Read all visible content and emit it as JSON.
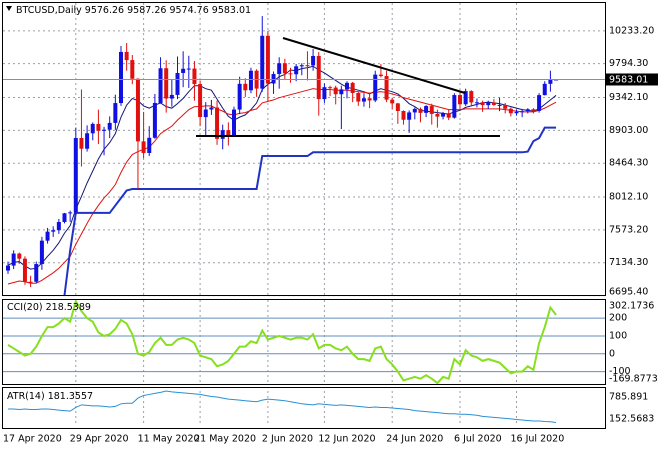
{
  "chart_data": [
    {
      "type": "candlestick",
      "title": "BTCUSD,Daily",
      "categories": [
        "17 Apr 2020",
        null,
        null,
        null,
        null,
        null,
        null,
        null,
        null,
        null,
        null,
        null,
        "29 Apr 2020",
        null,
        null,
        null,
        null,
        null,
        null,
        null,
        null,
        null,
        null,
        null,
        "11 May 2020",
        null,
        null,
        null,
        null,
        null,
        null,
        null,
        null,
        null,
        "21 May 2020",
        null,
        null,
        null,
        null,
        null,
        null,
        null,
        null,
        null,
        null,
        null,
        "2 Jun 2020",
        null,
        null,
        null,
        null,
        null,
        null,
        null,
        null,
        null,
        "12 Jun 2020",
        null,
        null,
        null,
        null,
        null,
        null,
        null,
        null,
        null,
        null,
        null,
        "24 Jun 2020",
        null,
        null,
        null,
        null,
        null,
        null,
        null,
        null,
        null,
        null,
        null,
        "6 Jul 2020",
        null,
        null,
        null,
        null,
        null,
        null,
        null,
        null,
        null,
        "16 Jul 2020",
        null,
        null,
        null,
        null,
        null,
        null,
        null
      ],
      "ohlc": [
        [
          7030,
          7150,
          6985,
          7096
        ],
        [
          7096,
          7300,
          7050,
          7257
        ],
        [
          7257,
          7270,
          7120,
          7189
        ],
        [
          7189,
          7220,
          6840,
          6881
        ],
        [
          6881,
          6960,
          6810,
          6880
        ],
        [
          6880,
          7150,
          6860,
          7117
        ],
        [
          7117,
          7480,
          7040,
          7429
        ],
        [
          7429,
          7600,
          7390,
          7550
        ],
        [
          7550,
          7620,
          7480,
          7569
        ],
        [
          7569,
          7720,
          7520,
          7679
        ],
        [
          7679,
          7800,
          7660,
          7795
        ],
        [
          7795,
          7830,
          7680,
          7807
        ],
        [
          7807,
          8940,
          7780,
          8801
        ],
        [
          8801,
          9450,
          8420,
          8658
        ],
        [
          8658,
          8970,
          8620,
          8864
        ],
        [
          8864,
          9010,
          8770,
          8989
        ],
        [
          8989,
          9180,
          8720,
          8897
        ],
        [
          8897,
          8950,
          8570,
          8912
        ],
        [
          8912,
          9090,
          8800,
          9003
        ],
        [
          9003,
          9380,
          8910,
          9268
        ],
        [
          9268,
          10030,
          9230,
          9951
        ],
        [
          9951,
          10070,
          9700,
          9842
        ],
        [
          9842,
          9910,
          9520,
          9593
        ],
        [
          9593,
          9600,
          8120,
          8756
        ],
        [
          8756,
          9150,
          8530,
          8601
        ],
        [
          8601,
          8960,
          8560,
          8804
        ],
        [
          8804,
          9390,
          8790,
          9269
        ],
        [
          9269,
          9880,
          9260,
          9733
        ],
        [
          9733,
          9840,
          9140,
          9328
        ],
        [
          9328,
          9580,
          9220,
          9377
        ],
        [
          9377,
          9890,
          9320,
          9670
        ],
        [
          9670,
          9960,
          9480,
          9726
        ],
        [
          9726,
          9900,
          9470,
          9729
        ],
        [
          9729,
          9830,
          9300,
          9522
        ],
        [
          9522,
          9570,
          8960,
          9081
        ],
        [
          9081,
          9280,
          8820,
          9182
        ],
        [
          9182,
          9310,
          9110,
          9209
        ],
        [
          9209,
          9300,
          8710,
          8790
        ],
        [
          8790,
          8980,
          8650,
          8906
        ],
        [
          8906,
          9010,
          8700,
          8835
        ],
        [
          8835,
          9220,
          8820,
          9181
        ],
        [
          9181,
          9620,
          9120,
          9525
        ],
        [
          9525,
          9600,
          9350,
          9439
        ],
        [
          9439,
          9740,
          9400,
          9700
        ],
        [
          9700,
          9720,
          9350,
          9461
        ],
        [
          9461,
          10430,
          9420,
          10167
        ],
        [
          10167,
          10230,
          9290,
          9529
        ],
        [
          9529,
          9690,
          9390,
          9656
        ],
        [
          9656,
          9880,
          9460,
          9800
        ],
        [
          9800,
          9860,
          9590,
          9665
        ],
        [
          9665,
          9740,
          9540,
          9653
        ],
        [
          9653,
          9790,
          9560,
          9759
        ],
        [
          9759,
          9800,
          9640,
          9774
        ],
        [
          9774,
          9960,
          9570,
          9771
        ],
        [
          9771,
          9990,
          9700,
          9897
        ],
        [
          9897,
          9950,
          9100,
          9321
        ],
        [
          9321,
          9530,
          9270,
          9480
        ],
        [
          9480,
          9500,
          9360,
          9475
        ],
        [
          9475,
          9500,
          9250,
          9386
        ],
        [
          9386,
          9500,
          8920,
          9450
        ],
        [
          9450,
          9560,
          9330,
          9538
        ],
        [
          9538,
          9550,
          9280,
          9402
        ],
        [
          9402,
          9420,
          9230,
          9288
        ],
        [
          9288,
          9400,
          9220,
          9332
        ],
        [
          9332,
          9400,
          9200,
          9303
        ],
        [
          9303,
          9700,
          9280,
          9648
        ],
        [
          9648,
          9790,
          9610,
          9629
        ],
        [
          9629,
          9700,
          9280,
          9313
        ],
        [
          9313,
          9340,
          9190,
          9264
        ],
        [
          9264,
          9270,
          8990,
          9162
        ],
        [
          9162,
          9170,
          8980,
          9045
        ],
        [
          9045,
          9170,
          8870,
          9143
        ],
        [
          9143,
          9210,
          9050,
          9190
        ],
        [
          9190,
          9210,
          9010,
          9137
        ],
        [
          9137,
          9240,
          9080,
          9228
        ],
        [
          9228,
          9260,
          8980,
          9123
        ],
        [
          9123,
          9180,
          8940,
          9087
        ],
        [
          9087,
          9150,
          9050,
          9132
        ],
        [
          9132,
          9180,
          9040,
          9073
        ],
        [
          9073,
          9400,
          9060,
          9375
        ],
        [
          9375,
          9420,
          9170,
          9252
        ],
        [
          9252,
          9460,
          9230,
          9428
        ],
        [
          9428,
          9440,
          9230,
          9277
        ],
        [
          9277,
          9330,
          9210,
          9278
        ],
        [
          9278,
          9300,
          9150,
          9240
        ],
        [
          9240,
          9300,
          9190,
          9276
        ],
        [
          9276,
          9320,
          9230,
          9243
        ],
        [
          9243,
          9340,
          9160,
          9243
        ],
        [
          9243,
          9270,
          9130,
          9192
        ],
        [
          9192,
          9210,
          9090,
          9132
        ],
        [
          9132,
          9180,
          9100,
          9151
        ],
        [
          9151,
          9190,
          9080,
          9159
        ],
        [
          9159,
          9200,
          9130,
          9185
        ],
        [
          9185,
          9200,
          9130,
          9164
        ],
        [
          9164,
          9400,
          9140,
          9374
        ],
        [
          9374,
          9560,
          9370,
          9525
        ],
        [
          9525,
          9700,
          9420,
          9576
        ],
        [
          9576.26,
          9587.26,
          9574.76,
          9583.01
        ]
      ],
      "bull_color": "#1010e0",
      "bear_color": "#e01010",
      "series": [
        {
          "color": "#15157a",
          "values": [
            7100,
            7140,
            7150,
            7090,
            7050,
            7060,
            7130,
            7220,
            7300,
            7400,
            7530,
            7630,
            7850,
            8020,
            8200,
            8360,
            8520,
            8650,
            8740,
            8860,
            9080,
            9240,
            9330,
            9300,
            9230,
            9200,
            9240,
            9270,
            9220,
            9200,
            9260,
            9330,
            9420,
            9500,
            9500,
            9460,
            9440,
            9320,
            9200,
            9090,
            9040,
            9080,
            9110,
            9180,
            9270,
            9450,
            9520,
            9560,
            9620,
            9650,
            9710,
            9700,
            9730,
            9740,
            9760,
            9710,
            9670,
            9620,
            9570,
            9520,
            9480,
            9460,
            9440,
            9420,
            9390,
            9430,
            9460,
            9440,
            9420,
            9390,
            9330,
            9260,
            9220,
            9170,
            9160,
            9150,
            9140,
            9130,
            9120,
            9150,
            9170,
            9210,
            9230,
            9250,
            9270,
            9280,
            9270,
            9260,
            9240,
            9220,
            9200,
            9180,
            9170,
            9160,
            9190,
            9250,
            9310,
            9370
          ]
        },
        {
          "color": "#e01010",
          "values": [
            6850,
            6870,
            6890,
            6880,
            6860,
            6860,
            6900,
            6950,
            7000,
            7060,
            7140,
            7220,
            7380,
            7520,
            7660,
            7790,
            7900,
            8000,
            8080,
            8180,
            8340,
            8480,
            8580,
            8620,
            8650,
            8680,
            8760,
            8860,
            8910,
            8960,
            9040,
            9110,
            9180,
            9220,
            9220,
            9230,
            9230,
            9190,
            9160,
            9120,
            9110,
            9130,
            9140,
            9170,
            9190,
            9270,
            9290,
            9310,
            9340,
            9360,
            9380,
            9400,
            9420,
            9440,
            9460,
            9450,
            9450,
            9450,
            9440,
            9440,
            9440,
            9430,
            9420,
            9410,
            9400,
            9410,
            9420,
            9410,
            9390,
            9370,
            9340,
            9320,
            9300,
            9280,
            9260,
            9240,
            9220,
            9200,
            9180,
            9180,
            9180,
            9190,
            9190,
            9190,
            9190,
            9190,
            9190,
            9190,
            9180,
            9170,
            9160,
            9150,
            9150,
            9150,
            9170,
            9200,
            9240,
            9280
          ]
        },
        {
          "color": "#1f33c7",
          "values": [
            null,
            null,
            null,
            null,
            null,
            null,
            null,
            null,
            null,
            null,
            6700,
            7300,
            7800,
            7800,
            7800,
            7800,
            7800,
            7800,
            7800,
            7900,
            8000,
            8100,
            8120,
            8120,
            8120,
            8120,
            8120,
            8120,
            8120,
            8120,
            8120,
            8120,
            8120,
            8120,
            8120,
            8120,
            8120,
            8120,
            8120,
            8120,
            8120,
            8120,
            8120,
            8120,
            8120,
            8560,
            8560,
            8560,
            8560,
            8560,
            8560,
            8560,
            8560,
            8560,
            8610,
            8610,
            8610,
            8610,
            8610,
            8610,
            8610,
            8610,
            8610,
            8610,
            8610,
            8610,
            8610,
            8610,
            8610,
            8610,
            8610,
            8610,
            8610,
            8610,
            8610,
            8610,
            8610,
            8610,
            8610,
            8610,
            8610,
            8610,
            8610,
            8610,
            8610,
            8610,
            8610,
            8610,
            8610,
            8610,
            8610,
            8610,
            8620,
            8760,
            8800,
            8940,
            8940,
            8940
          ]
        }
      ],
      "ylim": [
        6690,
        10605
      ],
      "yticks": [
        {
          "value": 10233.2,
          "label": "10233.20"
        },
        {
          "value": 9794.3,
          "label": "9794.30"
        },
        {
          "value": 9342.1,
          "label": "9342.10"
        },
        {
          "value": 8903,
          "label": "8903.00"
        },
        {
          "value": 8464.3,
          "label": "8464.30"
        },
        {
          "value": 8012.1,
          "label": "8012.10"
        },
        {
          "value": 7573.2,
          "label": "7573.20"
        },
        {
          "value": 7134.3,
          "label": "7134.30"
        },
        {
          "value": 6695.4,
          "label": "6695.40"
        }
      ],
      "grid": true
    },
    {
      "type": "line",
      "title": "CCI(20)",
      "color": "#86e01f",
      "values": [
        50,
        30,
        10,
        -10,
        0,
        40,
        100,
        150,
        150,
        170,
        200,
        180,
        295,
        240,
        200,
        180,
        120,
        100,
        110,
        140,
        190,
        170,
        110,
        0,
        -10,
        10,
        60,
        90,
        50,
        50,
        80,
        90,
        80,
        60,
        -10,
        -20,
        -30,
        -70,
        -60,
        -40,
        0,
        40,
        40,
        70,
        60,
        130,
        80,
        90,
        100,
        90,
        80,
        90,
        90,
        80,
        110,
        30,
        50,
        50,
        30,
        20,
        40,
        0,
        -30,
        -30,
        -40,
        30,
        40,
        -30,
        -60,
        -100,
        -150,
        -140,
        -130,
        -140,
        -120,
        -140,
        -165,
        -130,
        -140,
        -30,
        -60,
        20,
        -10,
        -20,
        -40,
        -30,
        -40,
        -50,
        -80,
        -110,
        -100,
        -100,
        -70,
        -90,
        60,
        150,
        260,
        218.5389
      ],
      "ylim": [
        -169.8773,
        302.1736
      ],
      "yticks": [
        302.1736,
        200,
        100,
        0,
        -100,
        -169.8773
      ]
    },
    {
      "type": "line",
      "title": "ATR(14)",
      "color": "#2a8fd4",
      "values": [
        440,
        440,
        430,
        440,
        430,
        430,
        440,
        440,
        430,
        420,
        410,
        400,
        470,
        520,
        510,
        500,
        500,
        490,
        480,
        490,
        540,
        550,
        550,
        650,
        700,
        720,
        740,
        760,
        785,
        770,
        760,
        750,
        740,
        730,
        720,
        700,
        680,
        670,
        650,
        630,
        620,
        610,
        600,
        590,
        580,
        610,
        630,
        620,
        610,
        600,
        580,
        560,
        540,
        530,
        520,
        540,
        530,
        520,
        510,
        520,
        510,
        500,
        490,
        480,
        470,
        480,
        470,
        470,
        460,
        450,
        440,
        430,
        410,
        400,
        390,
        380,
        370,
        360,
        350,
        350,
        340,
        340,
        330,
        320,
        300,
        290,
        280,
        270,
        260,
        250,
        240,
        230,
        220,
        210,
        210,
        200,
        195,
        181.3557
      ],
      "ylim": [
        152.5683,
        785.891
      ],
      "yticks": [
        785.891,
        152.5683
      ]
    }
  ]
}
